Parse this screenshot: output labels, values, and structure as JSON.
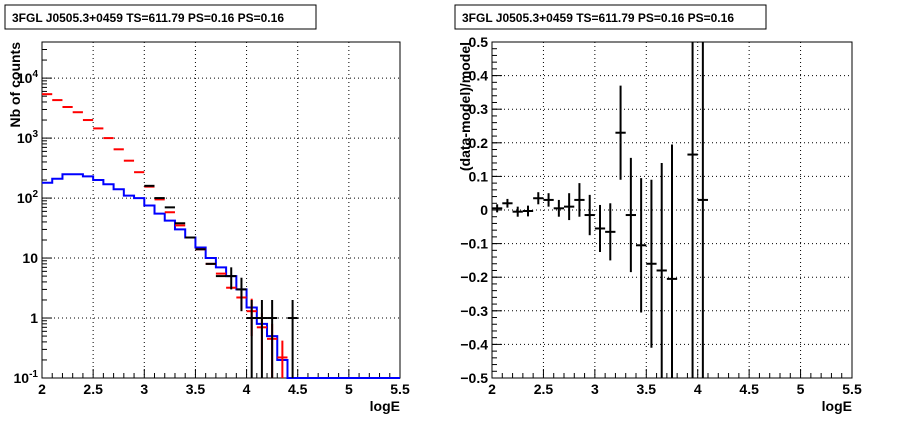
{
  "chart_data": [
    {
      "type": "line",
      "title": "3FGL J0505.3+0459 TS=611.79 PS=0.16 PS=0.16",
      "xlabel": "logE",
      "ylabel": "Nb of counts",
      "xlim": [
        2,
        5.5
      ],
      "ylim": [
        0.1,
        40000
      ],
      "yscale": "log",
      "grid": true,
      "x_ticks": [
        "2",
        "2.5",
        "3",
        "3.5",
        "4",
        "4.5",
        "5",
        "5.5"
      ],
      "y_ticks": [
        {
          "value": 0.1,
          "label": "10^-1"
        },
        {
          "value": 1,
          "label": "1"
        },
        {
          "value": 10,
          "label": "10"
        },
        {
          "value": 100,
          "label": "10^2"
        },
        {
          "value": 1000,
          "label": "10^3"
        },
        {
          "value": 10000,
          "label": "10^4"
        }
      ],
      "bin_edges": [
        2.0,
        2.1,
        2.2,
        2.3,
        2.4,
        2.5,
        2.6,
        2.7,
        2.8,
        2.9,
        3.0,
        3.1,
        3.2,
        3.3,
        3.4,
        3.5,
        3.6,
        3.7,
        3.8,
        3.9,
        4.0,
        4.1,
        4.2,
        4.3,
        4.4,
        4.5,
        4.6,
        4.7,
        4.8,
        4.9,
        5.0,
        5.1,
        5.2,
        5.3,
        5.4,
        5.5
      ],
      "series": [
        {
          "name": "",
          "color": "#0000ff",
          "style": "histogram",
          "values": [
            180,
            210,
            250,
            250,
            230,
            200,
            170,
            140,
            110,
            100,
            75,
            55,
            42,
            30,
            22,
            15,
            10,
            7,
            5,
            3,
            1.5,
            0.8,
            0.5,
            0.2,
            0.1,
            0.1,
            0.1,
            0.1,
            0.1,
            0.1,
            0.1,
            0.1,
            0.1,
            0.1,
            0.1
          ]
        },
        {
          "name": "",
          "color": "#ff0000",
          "style": "markers",
          "x": [
            2.05,
            2.15,
            2.25,
            2.35,
            2.45,
            2.55,
            2.65,
            2.75,
            2.85,
            2.95,
            3.05,
            3.15,
            3.25,
            3.35,
            3.45,
            3.55,
            3.65,
            3.75,
            3.85,
            3.95,
            4.05,
            4.15,
            4.25,
            4.35
          ],
          "y": [
            5400,
            4300,
            3300,
            2700,
            2000,
            1450,
            1000,
            650,
            420,
            270,
            155,
            95,
            58,
            35,
            22,
            14,
            8,
            5.5,
            3.2,
            2.2,
            1.3,
            0.7,
            0.45,
            0.22
          ],
          "yerr": [
            0,
            0,
            0,
            0,
            0,
            0,
            0,
            0,
            0,
            0,
            0,
            0,
            0,
            0,
            0,
            0,
            0,
            0,
            0,
            0.8,
            0.8,
            0.5,
            0.35,
            0.2
          ]
        },
        {
          "name": "",
          "color": "#000000",
          "style": "markers",
          "x": [
            3.05,
            3.15,
            3.25,
            3.35,
            3.45,
            3.55,
            3.65,
            3.75,
            3.85,
            3.95,
            4.05,
            4.15,
            4.25,
            4.45
          ],
          "y": [
            160,
            100,
            70,
            38,
            22,
            14,
            8,
            5,
            5,
            3,
            1,
            1,
            1,
            1
          ],
          "yerr": [
            0,
            0,
            0,
            0,
            0,
            0,
            0,
            0,
            2,
            1.7,
            1,
            1,
            1,
            1
          ]
        }
      ]
    },
    {
      "type": "scatter",
      "title": "3FGL J0505.3+0459 TS=611.79 PS=0.16 PS=0.16",
      "xlabel": "logE",
      "ylabel": "(data-model)/model",
      "xlim": [
        2,
        5.5
      ],
      "ylim": [
        -0.5,
        0.5
      ],
      "grid": true,
      "x_ticks": [
        "2",
        "2.5",
        "3",
        "3.5",
        "4",
        "4.5",
        "5",
        "5.5"
      ],
      "y_ticks": [
        "−0.5",
        "−0.4",
        "−0.3",
        "−0.2",
        "−0.1",
        "0",
        "0.1",
        "0.2",
        "0.3",
        "0.4",
        "0.5"
      ],
      "points": [
        {
          "x": 2.05,
          "y": 0.005,
          "yerr": 0.012
        },
        {
          "x": 2.15,
          "y": 0.02,
          "yerr": 0.013
        },
        {
          "x": 2.25,
          "y": -0.005,
          "yerr": 0.015
        },
        {
          "x": 2.35,
          "y": -0.003,
          "yerr": 0.016
        },
        {
          "x": 2.45,
          "y": 0.035,
          "yerr": 0.018
        },
        {
          "x": 2.55,
          "y": 0.03,
          "yerr": 0.02
        },
        {
          "x": 2.65,
          "y": 0.005,
          "yerr": 0.025
        },
        {
          "x": 2.75,
          "y": 0.01,
          "yerr": 0.04
        },
        {
          "x": 2.85,
          "y": 0.03,
          "yerr": 0.05
        },
        {
          "x": 2.95,
          "y": -0.015,
          "yerr": 0.06
        },
        {
          "x": 3.05,
          "y": -0.055,
          "yerr": 0.07
        },
        {
          "x": 3.15,
          "y": -0.065,
          "yerr": 0.085
        },
        {
          "x": 3.25,
          "y": 0.23,
          "yerr": 0.14
        },
        {
          "x": 3.35,
          "y": -0.015,
          "yerr": 0.17
        },
        {
          "x": 3.45,
          "y": -0.105,
          "yerr": 0.2
        },
        {
          "x": 3.55,
          "y": -0.16,
          "yerr": 0.25
        },
        {
          "x": 3.65,
          "y": -0.18,
          "yerr": 0.32
        },
        {
          "x": 3.75,
          "y": -0.205,
          "yerr": 0.4
        },
        {
          "x": 3.95,
          "y": 0.165,
          "yerr": 0.7
        },
        {
          "x": 4.05,
          "y": 0.03,
          "yerr": 0.7
        }
      ]
    }
  ]
}
